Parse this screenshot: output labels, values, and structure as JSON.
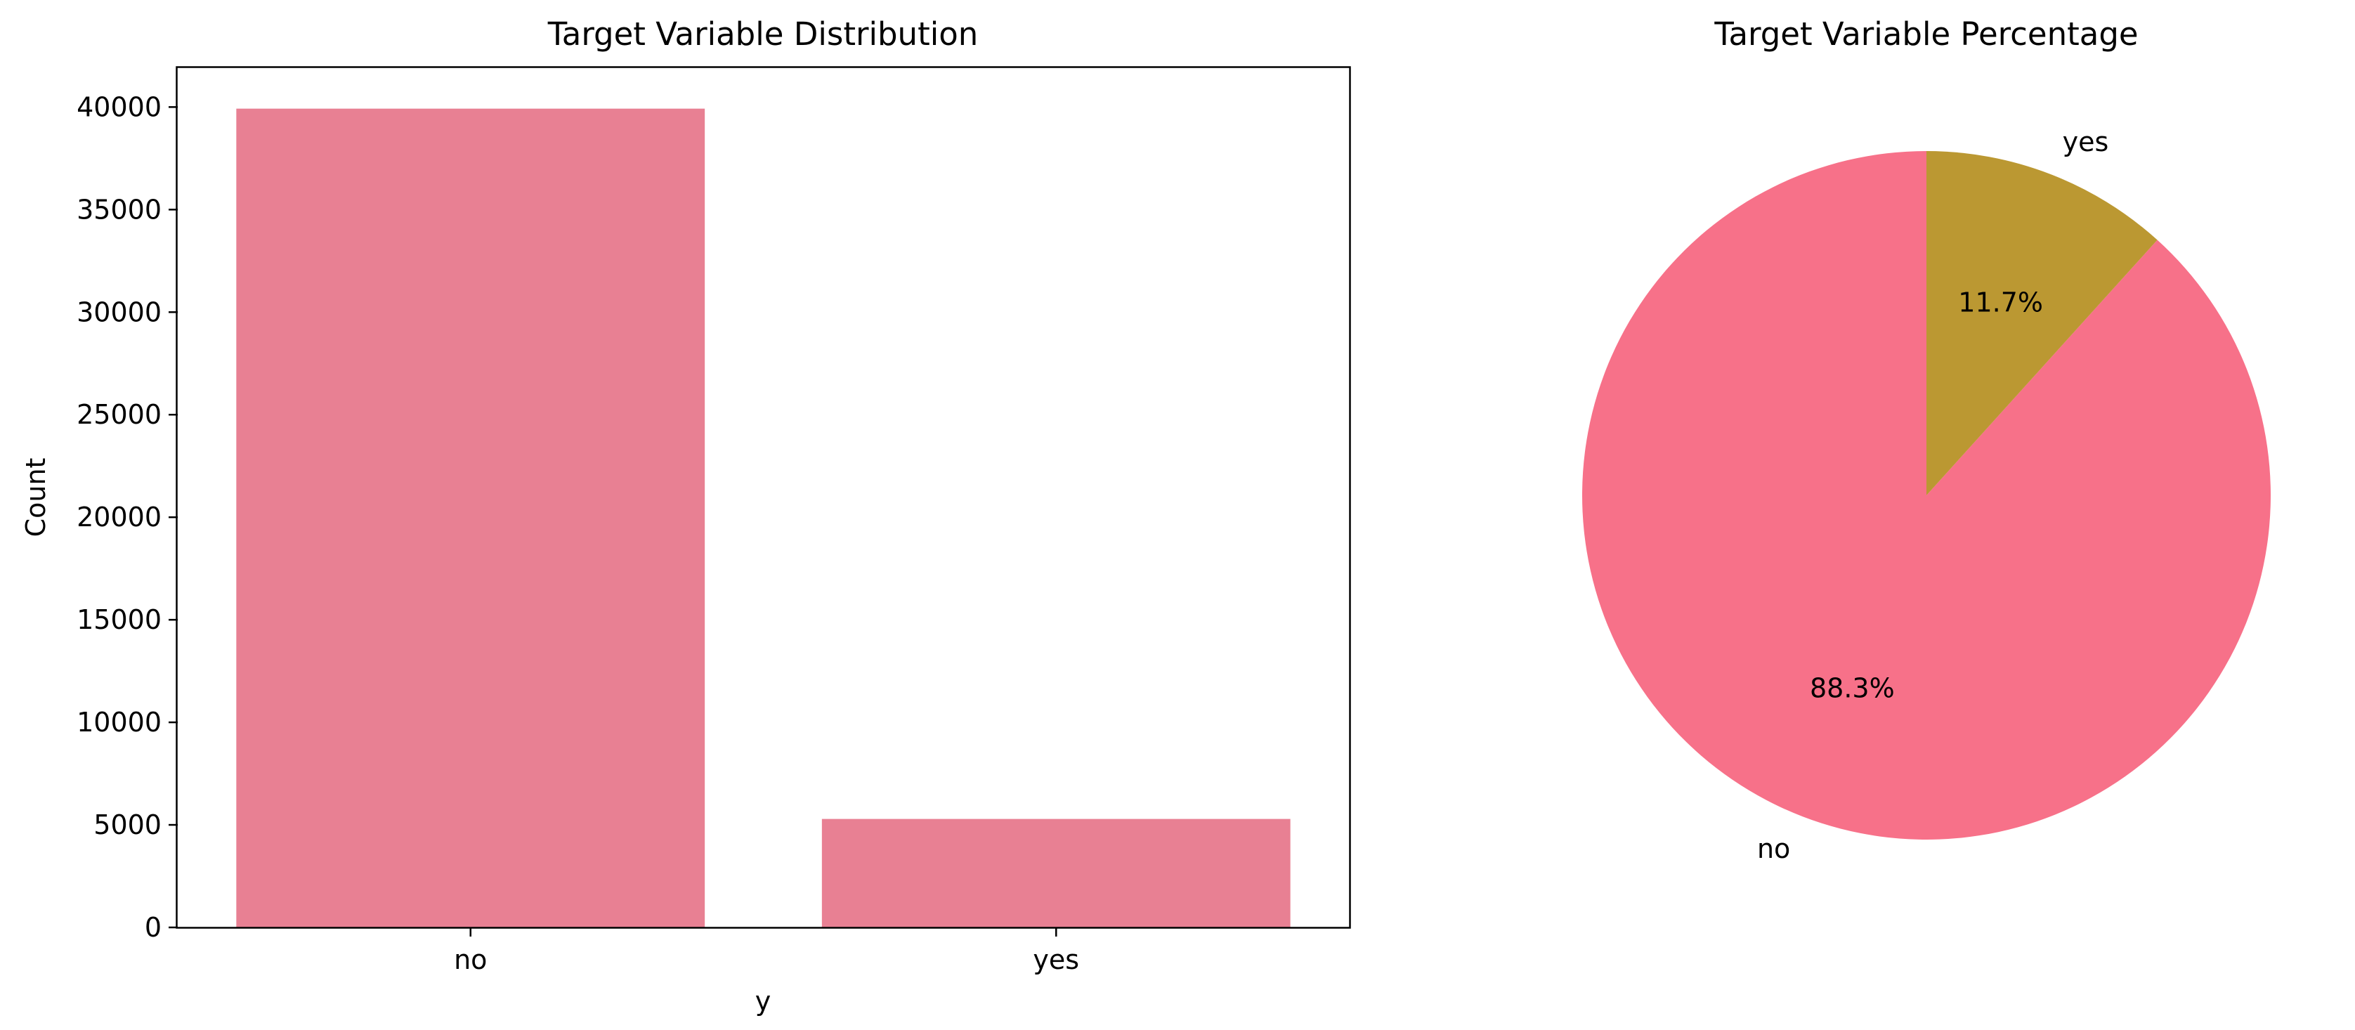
{
  "chart_data": [
    {
      "type": "bar",
      "title": "Target Variable Distribution",
      "xlabel": "y",
      "ylabel": "Count",
      "categories": [
        "no",
        "yes"
      ],
      "values": [
        39922,
        5289
      ],
      "ylim": [
        0,
        41965
      ],
      "yticks": [
        0,
        5000,
        10000,
        15000,
        20000,
        25000,
        30000,
        35000,
        40000
      ],
      "color": "#e88093",
      "grid": false
    },
    {
      "type": "pie",
      "title": "Target Variable Percentage",
      "labels": [
        "no",
        "yes"
      ],
      "values": [
        88.3,
        11.7
      ],
      "percent_labels": [
        "88.3%",
        "11.7%"
      ],
      "colors": [
        "#f77189",
        "#bb9832"
      ],
      "startangle": 90
    }
  ]
}
